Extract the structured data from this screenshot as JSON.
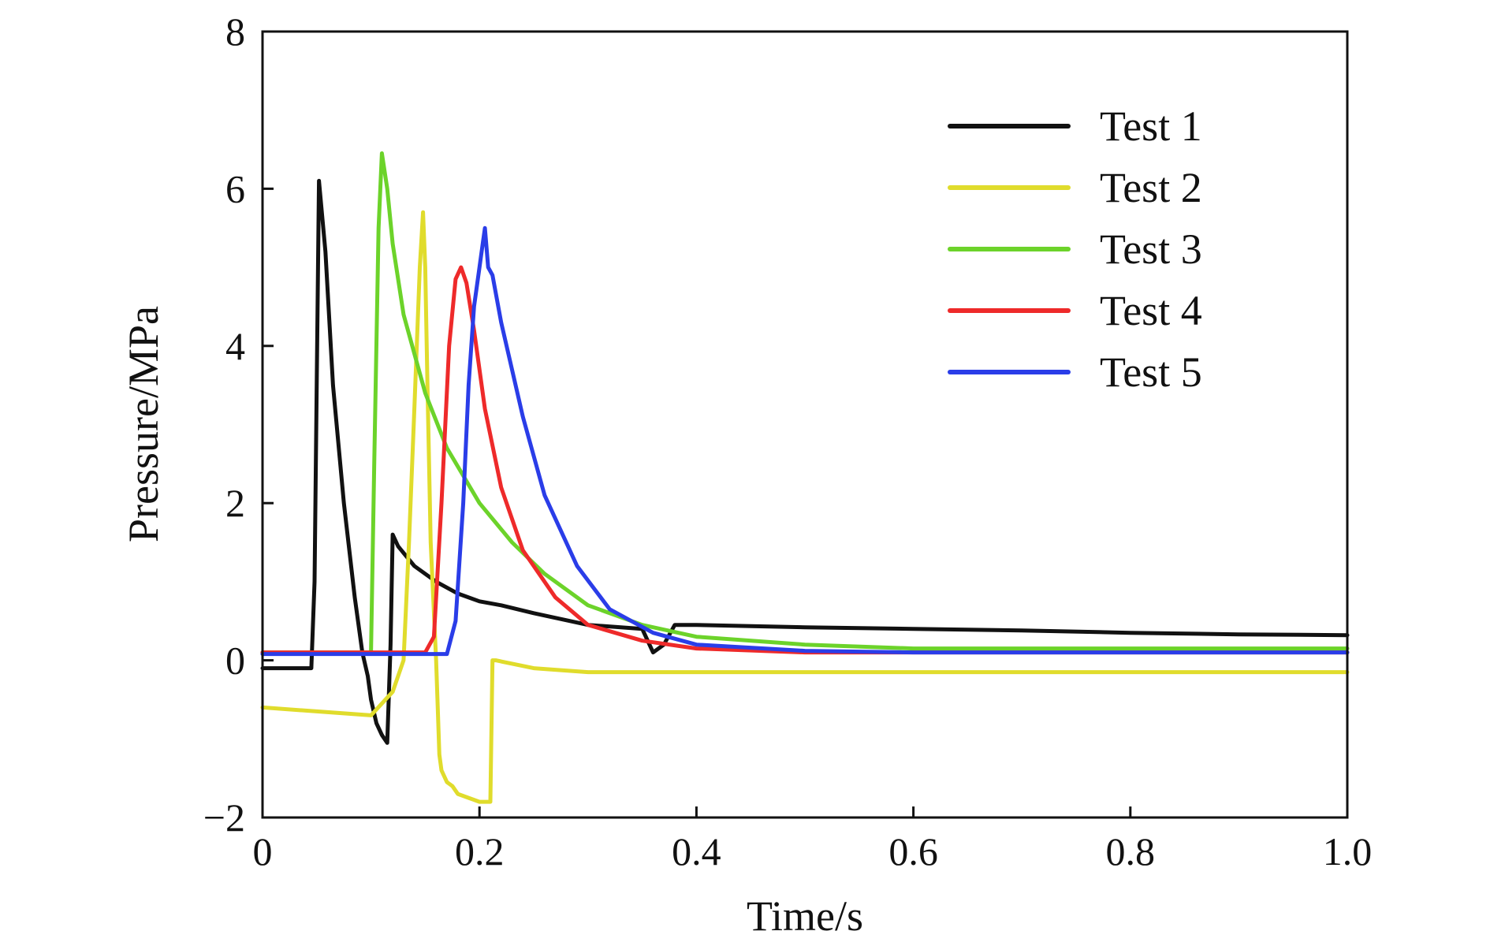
{
  "chart_data": {
    "type": "line",
    "title": "",
    "xlabel": "Time/s",
    "ylabel": "Pressure/MPa",
    "xlim": [
      0,
      1.0
    ],
    "ylim": [
      -2,
      8
    ],
    "xticks": [
      "0",
      "0.2",
      "0.4",
      "0.6",
      "0.8",
      "1.0"
    ],
    "xtick_values": [
      0,
      0.2,
      0.4,
      0.6,
      0.8,
      1.0
    ],
    "yticks": [
      "−2",
      "0",
      "2",
      "4",
      "6",
      "8"
    ],
    "ytick_values": [
      -2,
      0,
      2,
      4,
      6,
      8
    ],
    "grid": false,
    "legend_position": "top-right",
    "series": [
      {
        "name": "Test 1",
        "color": "#111111",
        "x": [
          0,
          0.045,
          0.048,
          0.052,
          0.058,
          0.065,
          0.075,
          0.085,
          0.092,
          0.097,
          0.1,
          0.105,
          0.11,
          0.115,
          0.118,
          0.12,
          0.125,
          0.14,
          0.16,
          0.18,
          0.2,
          0.22,
          0.25,
          0.3,
          0.35,
          0.36,
          0.37,
          0.38,
          0.4,
          0.5,
          0.6,
          0.7,
          0.8,
          0.9,
          1.0
        ],
        "y": [
          -0.1,
          -0.1,
          1.0,
          6.1,
          5.2,
          3.5,
          2.0,
          0.8,
          0.1,
          -0.2,
          -0.5,
          -0.8,
          -0.95,
          -1.05,
          0.2,
          1.6,
          1.45,
          1.2,
          1.0,
          0.85,
          0.75,
          0.7,
          0.6,
          0.45,
          0.4,
          0.1,
          0.2,
          0.45,
          0.45,
          0.42,
          0.4,
          0.38,
          0.35,
          0.33,
          0.32
        ]
      },
      {
        "name": "Test 2",
        "color": "#e0dc2c",
        "x": [
          0,
          0.05,
          0.1,
          0.12,
          0.13,
          0.135,
          0.14,
          0.145,
          0.148,
          0.15,
          0.152,
          0.155,
          0.16,
          0.163,
          0.165,
          0.17,
          0.175,
          0.18,
          0.19,
          0.2,
          0.21,
          0.212,
          0.215,
          0.25,
          0.3,
          0.4,
          0.5,
          0.6,
          0.7,
          0.8,
          0.9,
          1.0
        ],
        "y": [
          -0.6,
          -0.65,
          -0.7,
          -0.4,
          0.0,
          1.5,
          3.2,
          5.0,
          5.7,
          5.0,
          3.5,
          1.5,
          0.0,
          -1.2,
          -1.4,
          -1.55,
          -1.6,
          -1.7,
          -1.75,
          -1.8,
          -1.8,
          0.0,
          0.0,
          -0.1,
          -0.15,
          -0.15,
          -0.15,
          -0.15,
          -0.15,
          -0.15,
          -0.15,
          -0.15
        ]
      },
      {
        "name": "Test 3",
        "color": "#6cd32a",
        "x": [
          0,
          0.05,
          0.1,
          0.103,
          0.107,
          0.11,
          0.115,
          0.12,
          0.13,
          0.15,
          0.17,
          0.2,
          0.23,
          0.26,
          0.3,
          0.35,
          0.4,
          0.5,
          0.6,
          0.8,
          1.0
        ],
        "y": [
          0.1,
          0.1,
          0.1,
          2.5,
          5.5,
          6.45,
          6.0,
          5.3,
          4.4,
          3.4,
          2.7,
          2.0,
          1.5,
          1.1,
          0.7,
          0.45,
          0.3,
          0.2,
          0.15,
          0.15,
          0.15
        ]
      },
      {
        "name": "Test 4",
        "color": "#ee2a2a",
        "x": [
          0,
          0.1,
          0.15,
          0.158,
          0.165,
          0.172,
          0.178,
          0.183,
          0.188,
          0.195,
          0.205,
          0.22,
          0.24,
          0.27,
          0.3,
          0.35,
          0.4,
          0.5,
          0.6,
          0.8,
          1.0
        ],
        "y": [
          0.1,
          0.1,
          0.1,
          0.3,
          2.0,
          4.0,
          4.85,
          5.0,
          4.8,
          4.2,
          3.2,
          2.2,
          1.4,
          0.8,
          0.45,
          0.25,
          0.15,
          0.1,
          0.1,
          0.1,
          0.1
        ]
      },
      {
        "name": "Test 5",
        "color": "#2a3de8",
        "x": [
          0,
          0.1,
          0.17,
          0.178,
          0.185,
          0.19,
          0.195,
          0.2,
          0.203,
          0.205,
          0.208,
          0.212,
          0.22,
          0.24,
          0.26,
          0.29,
          0.32,
          0.36,
          0.4,
          0.5,
          0.6,
          0.8,
          1.0
        ],
        "y": [
          0.08,
          0.08,
          0.08,
          0.5,
          2.0,
          3.5,
          4.5,
          5.0,
          5.3,
          5.5,
          5.0,
          4.9,
          4.3,
          3.1,
          2.1,
          1.2,
          0.65,
          0.35,
          0.2,
          0.12,
          0.1,
          0.1,
          0.1
        ]
      }
    ]
  }
}
